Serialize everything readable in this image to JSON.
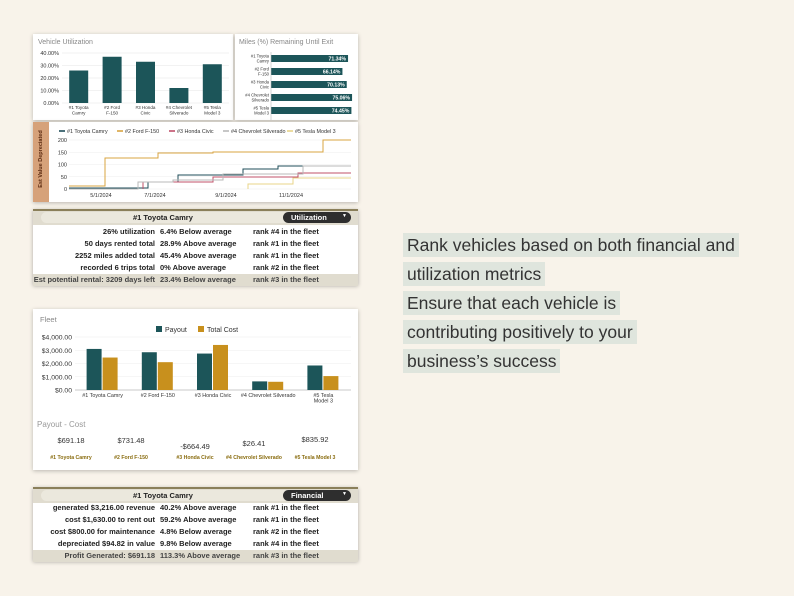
{
  "util_chart": {
    "title": "Vehicle Utilization",
    "type": "bar",
    "yticks": [
      "40.00%",
      "30.00%",
      "20.00%",
      "10.00%",
      "0.00%"
    ],
    "categories": [
      "#1 Toyota Camry",
      "#2 Ford F-150",
      "#3 Honda Civic",
      "#4 Chevrolet Silverado",
      "#5 Tesla Model 3"
    ],
    "values": [
      26,
      37,
      33,
      12,
      31
    ],
    "ylim": [
      0,
      40
    ]
  },
  "miles_chart": {
    "title": "Miles (%) Remaining Until Exit",
    "type": "bar",
    "categories": [
      "#1 Toyota Camry",
      "#2 Ford F-150",
      "#3 Honda Civic",
      "#4 Chevrolet Silverado",
      "#5 Tesla Model 3"
    ],
    "values": [
      71.34,
      66.14,
      70.13,
      75.06,
      74.45
    ],
    "labels": [
      "71.34%",
      "66.14%",
      "70.13%",
      "75.06%",
      "74.45%"
    ]
  },
  "line_chart": {
    "side_label": "Est Value Depreciated",
    "legend": [
      "#1 Toyota Camry",
      "#2 Ford F-150",
      "#3 Honda Civic",
      "#4 Chevrolet Silverado",
      "#5 Tesla Model 3"
    ],
    "colors": [
      "#1f4e5a",
      "#d9a441",
      "#c0506a",
      "#b9b9b9",
      "#e8d488"
    ],
    "yticks": [
      "200",
      "150",
      "100",
      "50",
      "0"
    ],
    "xticks": [
      "5/1/2024",
      "7/1/2024",
      "9/1/2024",
      "11/1/2024"
    ]
  },
  "util_table": {
    "dropdown": "#1 Toyota Camry",
    "pill": "Utilization",
    "rows": [
      {
        "a": "26% utilization",
        "b": "6.4% Below average",
        "c": "rank #4 in the fleet"
      },
      {
        "a": "50 days rented total",
        "b": "28.9% Above average",
        "c": "rank #1 in the fleet"
      },
      {
        "a": "2252 miles added total",
        "b": "45.4% Above average",
        "c": "rank #1 in the fleet"
      },
      {
        "a": "recorded 6 trips total",
        "b": "0% Above average",
        "c": "rank #2 in the fleet"
      }
    ],
    "footer": {
      "a": "Est potential rental: 3209 days left",
      "b": "23.4% Below average",
      "c": "rank #3 in the fleet"
    }
  },
  "fleet_chart": {
    "title": "Fleet",
    "type": "bar",
    "legend": [
      "Payout",
      "Total Cost"
    ],
    "colors": [
      "#1c5559",
      "#c8901d"
    ],
    "yticks": [
      "$4,000.00",
      "$3,000.00",
      "$2,000.00",
      "$1,000.00",
      "$0.00"
    ],
    "categories": [
      "#1 Toyota Camry",
      "#2 Ford F-150",
      "#3 Honda Civic",
      "#4 Chevrolet Silverado",
      "#5 Tesla Model 3"
    ],
    "series": [
      {
        "name": "Payout",
        "values": [
          3100,
          2850,
          2750,
          650,
          1850
        ]
      },
      {
        "name": "Total Cost",
        "values": [
          2450,
          2100,
          3400,
          620,
          1050
        ]
      }
    ],
    "ylim": [
      0,
      4000
    ]
  },
  "payout": {
    "title": "Payout - Cost",
    "values": [
      "$691.18",
      "$731.48",
      "-$664.49",
      "$26.41",
      "$835.92"
    ],
    "names": [
      "#1 Toyota Camry",
      "#2 Ford F-150",
      "#3 Honda Civic",
      "#4 Chevrolet Silverado",
      "#5 Tesla Model 3"
    ]
  },
  "fin_table": {
    "dropdown": "#1 Toyota Camry",
    "pill": "Financial",
    "rows": [
      {
        "a": "generated $3,216.00 revenue",
        "b": "40.2% Above average",
        "c": "rank #1 in the fleet"
      },
      {
        "a": "cost $1,630.00 to rent out",
        "b": "59.2% Above average",
        "c": "rank #1 in the fleet"
      },
      {
        "a": "cost $800.00 for maintenance",
        "b": "4.8% Below average",
        "c": "rank #2 in the fleet"
      },
      {
        "a": "depreciated $94.82 in value",
        "b": "9.8% Below average",
        "c": "rank #4 in the fleet"
      }
    ],
    "footer": {
      "a": "Profit Generated: $691.18",
      "b": "113.3% Above average",
      "c": "rank #3 in the fleet"
    }
  },
  "callouts": {
    "line1": "Rank vehicles based on both financial and utilization metrics",
    "line2": "Ensure that each vehicle is contributing positively to your business’s success"
  }
}
